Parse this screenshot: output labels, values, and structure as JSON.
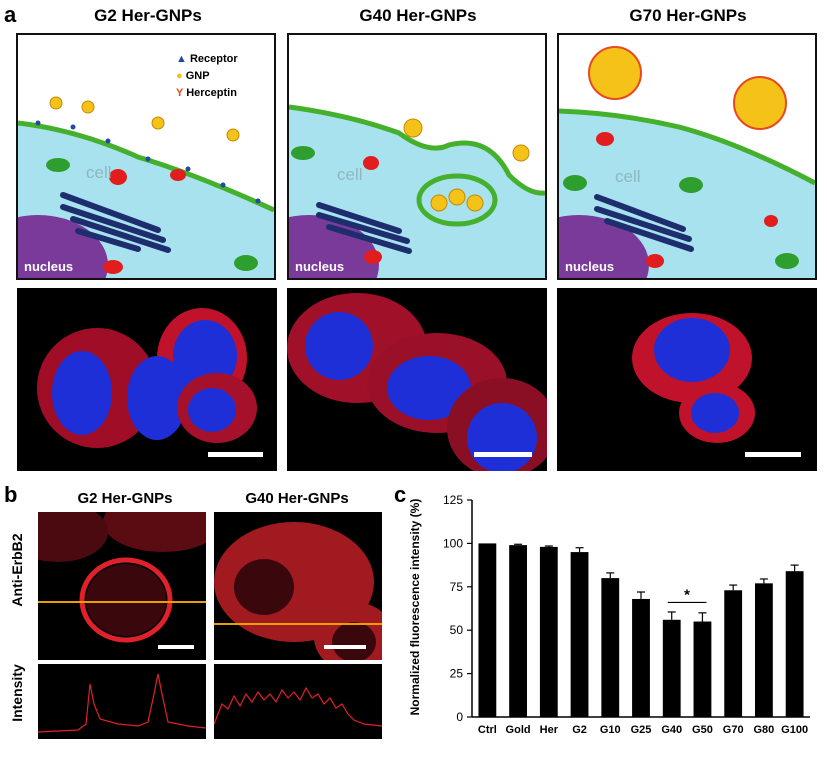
{
  "panel_a": {
    "label": "a",
    "titles": [
      "G2 Her-GNPs",
      "G40 Her-GNPs",
      "G70 Her-GNPs"
    ],
    "legend": [
      {
        "text": "Receptor",
        "color": "#1f4aa8"
      },
      {
        "text": "GNP",
        "color": "#f2c11a"
      },
      {
        "text": "Herceptin",
        "color": "#e8491e"
      }
    ],
    "cell_label": "cell",
    "nucleus_label": "nucleus",
    "colors": {
      "cytoplasm": "#a8e2ee",
      "membrane": "#44b02c",
      "nucleus": "#7a3a9a",
      "gnp": "#f5c21a",
      "receptor": "#1f4aa8",
      "herceptin": "#e8491e"
    }
  },
  "panel_b": {
    "label": "b",
    "titles": [
      "G2 Her-GNPs",
      "G40 Her-GNPs"
    ],
    "row_labels": [
      "Anti-ErbB2",
      "Intensity"
    ]
  },
  "panel_c": {
    "label": "c"
  },
  "chart_data": {
    "type": "bar",
    "ylabel": "Normalized fluorescence intensity (%)",
    "categories": [
      "Ctrl",
      "Gold",
      "Her",
      "G2",
      "G10",
      "G25",
      "G40",
      "G50",
      "G70",
      "G80",
      "G100"
    ],
    "values": [
      100,
      99,
      98,
      95,
      80,
      68,
      56,
      55,
      73,
      77,
      84
    ],
    "errors": [
      0,
      0.5,
      0.5,
      2.5,
      3,
      4,
      4.5,
      5,
      3,
      2.5,
      3.5
    ],
    "ylim": [
      0,
      125
    ],
    "yticks": [
      0,
      25,
      50,
      75,
      100,
      125
    ],
    "annotation": {
      "text": "*",
      "between": [
        "G40",
        "G50"
      ]
    },
    "bar_color": "#000000"
  }
}
